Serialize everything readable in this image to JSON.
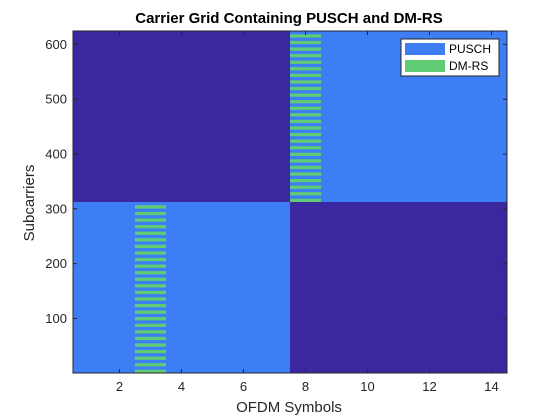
{
  "chart_data": {
    "type": "heatmap",
    "title": "Carrier Grid Containing PUSCH and DM-RS",
    "xlabel": "OFDM Symbols",
    "ylabel": "Subcarriers",
    "xlim": [
      0.5,
      14.5
    ],
    "ylim": [
      0.5,
      624.5
    ],
    "xticks": [
      2,
      4,
      6,
      8,
      10,
      12,
      14
    ],
    "yticks": [
      100,
      200,
      300,
      400,
      500,
      600
    ],
    "grid": false,
    "legend_location": "top-right",
    "colors": {
      "background": "#3b28a0",
      "pusch": "#3d7ef5",
      "dmrs": "#5fcb74"
    },
    "legend": [
      {
        "name": "PUSCH",
        "color": "#3d7ef5"
      },
      {
        "name": "DM-RS",
        "color": "#5fcb74"
      }
    ],
    "pusch_regions": [
      {
        "symbols": [
          1,
          7
        ],
        "subcarriers": [
          1,
          312
        ]
      },
      {
        "symbols": [
          8,
          14
        ],
        "subcarriers": [
          313,
          624
        ]
      }
    ],
    "dmrs_regions": [
      {
        "symbol": 3,
        "subcarriers": [
          1,
          312
        ],
        "stripe_period": 12
      },
      {
        "symbol": 8,
        "subcarriers": [
          313,
          624
        ],
        "stripe_period": 12
      }
    ]
  }
}
